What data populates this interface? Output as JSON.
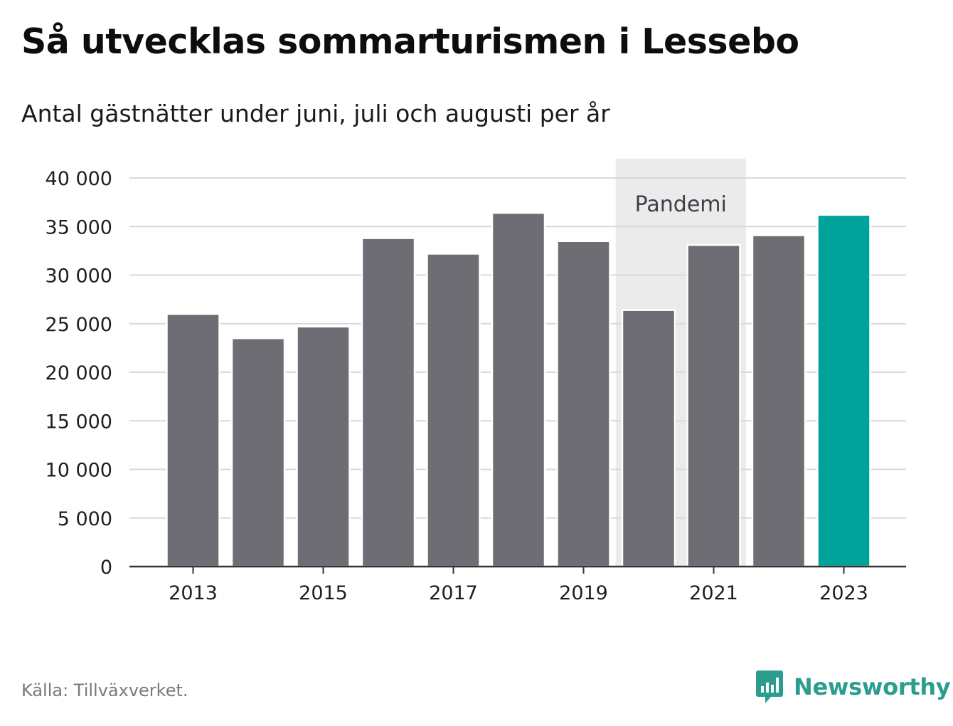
{
  "title": "Så utvecklas sommarturismen i Lessebo",
  "subtitle": "Antal gästnätter under juni, juli och augusti per år",
  "source": "Källa: Tillväxverket.",
  "brand": {
    "name": "Newsworthy",
    "icon": "newsworthy-logo-icon",
    "color": "#2a9d8f"
  },
  "colors": {
    "bar": "#6e6d74",
    "highlight": "#00a399",
    "band": "#ebebeb",
    "grid": "#d9d9d9",
    "axis": "#333333"
  },
  "chart_data": {
    "type": "bar",
    "x": [
      2013,
      2014,
      2015,
      2016,
      2017,
      2018,
      2019,
      2020,
      2021,
      2022,
      2023
    ],
    "values": [
      26000,
      23500,
      24700,
      33800,
      32200,
      36400,
      33500,
      26400,
      33100,
      34100,
      36200
    ],
    "highlight_index": 10,
    "xticks": [
      "2013",
      "2015",
      "2017",
      "2019",
      "2021",
      "2023"
    ],
    "yticks": [
      0,
      5000,
      10000,
      15000,
      20000,
      25000,
      30000,
      35000,
      40000
    ],
    "ytick_labels": [
      "0",
      "5 000",
      "10 000",
      "15 000",
      "20 000",
      "25 000",
      "30 000",
      "35 000",
      "40 000"
    ],
    "ylim": [
      0,
      42000
    ],
    "grid": true,
    "annotation": {
      "label": "Pandemi",
      "from": 2020,
      "to": 2021
    }
  }
}
